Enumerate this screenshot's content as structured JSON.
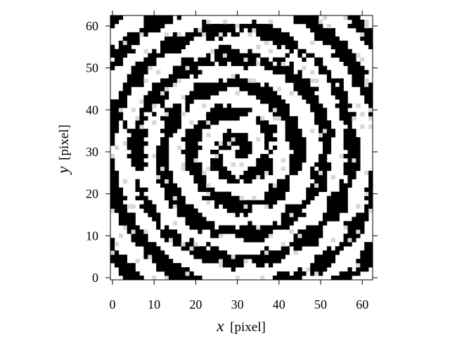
{
  "chart_data": {
    "type": "heatmap",
    "title": "",
    "xlabel_var": "x",
    "xlabel_unit": "[pixel]",
    "ylabel_var": "y",
    "ylabel_unit": "[pixel]",
    "xlim": [
      -0.5,
      62.5
    ],
    "ylim": [
      -0.5,
      62.5
    ],
    "x_ticks": [
      0,
      10,
      20,
      30,
      40,
      50,
      60
    ],
    "y_ticks": [
      0,
      10,
      20,
      30,
      40,
      50,
      60
    ],
    "grid": false,
    "colormap": "gray",
    "colors": {
      "low": "#000000",
      "high": "#ffffff",
      "frame": "#000000"
    },
    "grid_size": [
      63,
      63
    ],
    "value_range": [
      0,
      1
    ],
    "description_of_values": "pixel intensity, mostly binary black/white with occasional gray"
  }
}
